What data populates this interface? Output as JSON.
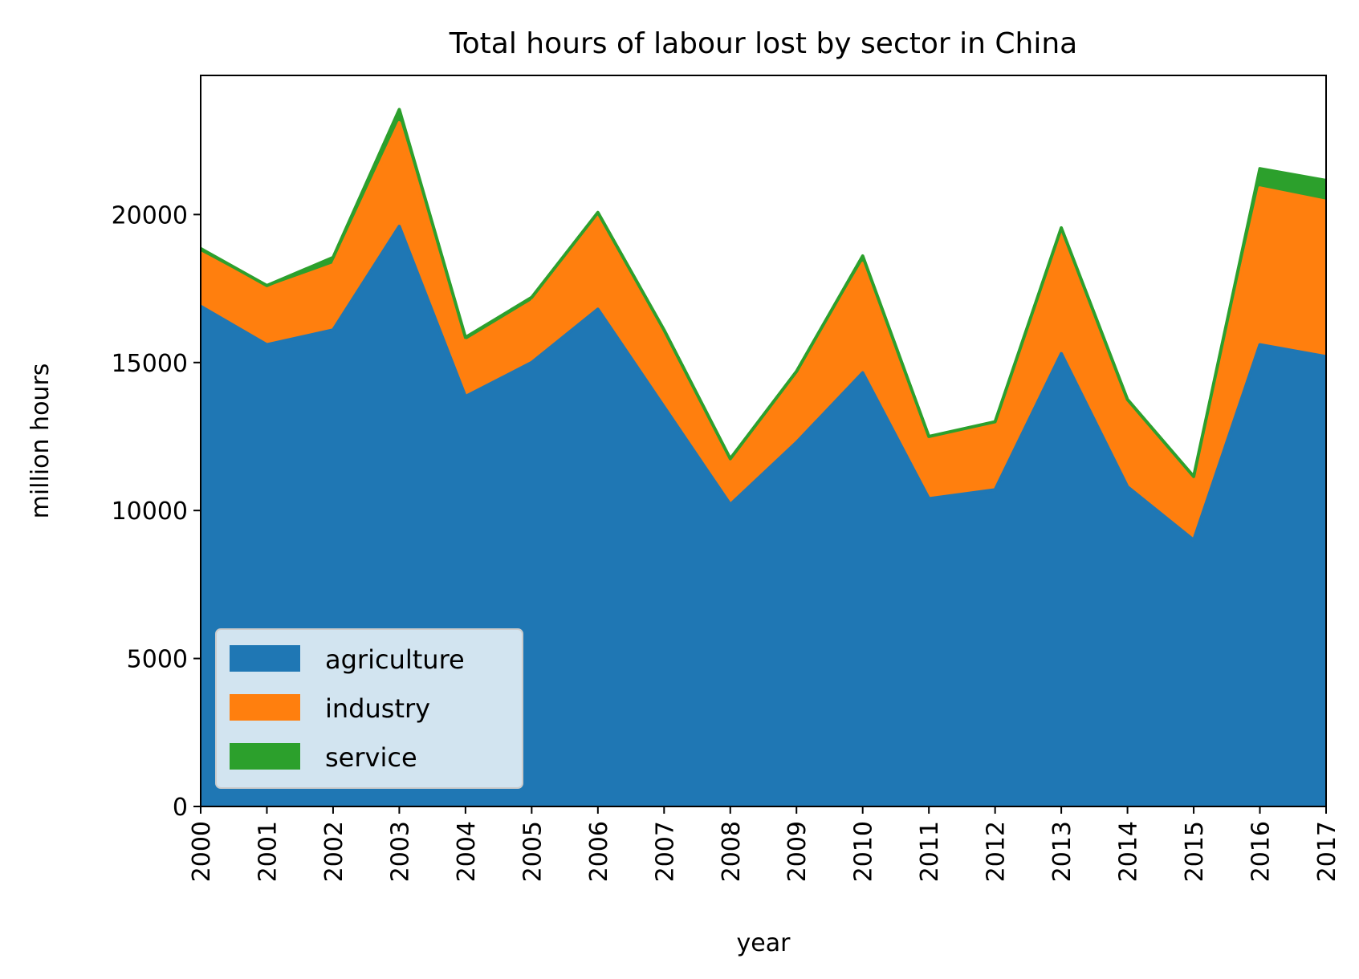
{
  "chart_data": {
    "type": "area",
    "stacked": true,
    "title": "Total hours of labour lost by sector in China",
    "xlabel": "year",
    "ylabel": "million hours",
    "x": [
      "2000",
      "2001",
      "2002",
      "2003",
      "2004",
      "2005",
      "2006",
      "2007",
      "2008",
      "2009",
      "2010",
      "2011",
      "2012",
      "2013",
      "2014",
      "2015",
      "2016",
      "2017"
    ],
    "series": [
      {
        "name": "agriculture",
        "color": "#1f77b4",
        "values": [
          16900,
          15600,
          16100,
          19600,
          13850,
          15000,
          16800,
          13500,
          10200,
          12300,
          14650,
          10400,
          10700,
          15300,
          10800,
          9000,
          15600,
          15200
        ]
      },
      {
        "name": "industry",
        "color": "#ff7f0e",
        "values": [
          1800,
          1900,
          2200,
          3500,
          1850,
          2050,
          3150,
          2500,
          1450,
          2300,
          3700,
          2000,
          2200,
          4100,
          2800,
          2000,
          5300,
          5250
        ]
      },
      {
        "name": "service",
        "color": "#2ca02c",
        "values": [
          150,
          100,
          250,
          450,
          150,
          150,
          120,
          100,
          100,
          100,
          250,
          100,
          100,
          150,
          150,
          150,
          650,
          700
        ]
      }
    ],
    "ylim": [
      0,
      24700
    ],
    "yticks": [
      "0",
      "5000",
      "10000",
      "15000",
      "20000"
    ],
    "ytick_values": [
      0,
      5000,
      10000,
      15000,
      20000
    ],
    "grid": false,
    "legend_position": "lower-left"
  }
}
